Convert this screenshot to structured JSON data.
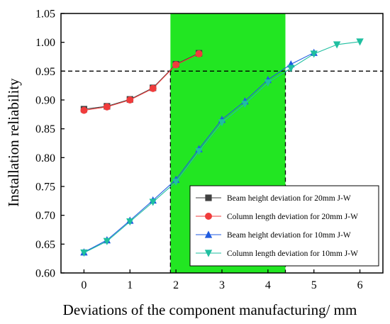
{
  "chart_data": {
    "type": "line",
    "title": "",
    "xlabel": "Deviations of the component manufacturing/ mm",
    "ylabel": "Installation reliability",
    "xlim": [
      -0.5,
      6.5
    ],
    "ylim": [
      0.6,
      1.05
    ],
    "x_ticks": [
      0,
      1,
      2,
      3,
      4,
      5,
      6
    ],
    "y_ticks": [
      0.6,
      0.65,
      0.7,
      0.75,
      0.8,
      0.85,
      0.9,
      0.95,
      1.0,
      1.05
    ],
    "x_tick_labels": [
      "0",
      "1",
      "2",
      "3",
      "4",
      "5",
      "6"
    ],
    "y_tick_labels": [
      "0.60",
      "0.65",
      "0.70",
      "0.75",
      "0.80",
      "0.85",
      "0.90",
      "0.95",
      "1.00",
      "1.05"
    ],
    "grid": false,
    "legend_position": "bottom-right",
    "highlight_band": {
      "x_from": 1.88,
      "x_to": 4.38,
      "color": "#22e622"
    },
    "threshold": {
      "y": 0.95,
      "style": "dashed"
    },
    "drop_lines": [
      1.88,
      4.38
    ],
    "series": [
      {
        "name": "Beam height deviation for 20mm J-W",
        "marker": "square",
        "color": "#404040",
        "x": [
          0,
          0.5,
          1,
          1.5,
          2,
          2.5
        ],
        "y": [
          0.884,
          0.889,
          0.901,
          0.921,
          0.962,
          0.981
        ]
      },
      {
        "name": "Column length deviation for 20mm J-W",
        "marker": "circle",
        "color": "#f03c3c",
        "x": [
          0,
          0.5,
          1,
          1.5,
          2,
          2.5
        ],
        "y": [
          0.882,
          0.888,
          0.9,
          0.92,
          0.961,
          0.98
        ]
      },
      {
        "name": "Beam height deviation for 10mm J-W",
        "marker": "triangle-up",
        "color": "#1f5be0",
        "x": [
          0,
          0.5,
          1,
          1.5,
          2,
          2.5,
          3,
          3.5,
          4,
          4.5,
          5
        ],
        "y": [
          0.636,
          0.657,
          0.691,
          0.726,
          0.762,
          0.815,
          0.866,
          0.898,
          0.935,
          0.962,
          0.982
        ]
      },
      {
        "name": "Column length deviation for 10mm J-W",
        "marker": "triangle-down",
        "color": "#1fbfa0",
        "x": [
          0,
          0.5,
          1,
          1.5,
          2,
          2.5,
          3,
          3.5,
          4,
          4.5,
          5,
          5.5,
          6
        ],
        "y": [
          0.635,
          0.655,
          0.689,
          0.723,
          0.758,
          0.811,
          0.861,
          0.893,
          0.93,
          0.955,
          0.98,
          0.996,
          1.001
        ]
      }
    ]
  }
}
